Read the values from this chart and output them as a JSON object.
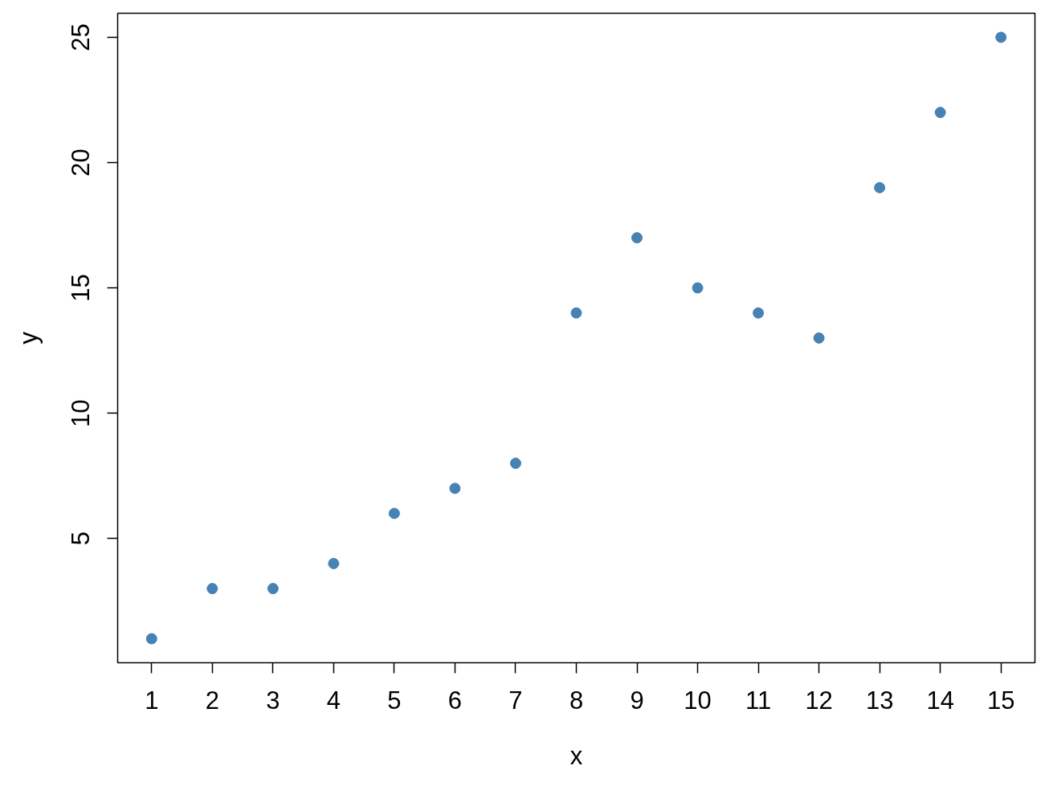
{
  "chart_data": {
    "type": "scatter",
    "x": [
      1,
      2,
      3,
      4,
      5,
      6,
      7,
      8,
      9,
      10,
      11,
      12,
      13,
      14,
      15
    ],
    "values": [
      1,
      3,
      3,
      4,
      6,
      7,
      8,
      14,
      17,
      15,
      14,
      13,
      19,
      22,
      25
    ],
    "color": "#4682b4",
    "marker": "circle",
    "xlabel": "x",
    "ylabel": "y",
    "xlim": [
      0.44,
      15.56
    ],
    "ylim": [
      0.04,
      25.96
    ],
    "xticks": [
      1,
      2,
      3,
      4,
      5,
      6,
      7,
      8,
      9,
      10,
      11,
      12,
      13,
      14,
      15
    ],
    "yticks": [
      5,
      10,
      15,
      20,
      25
    ],
    "grid": false
  }
}
